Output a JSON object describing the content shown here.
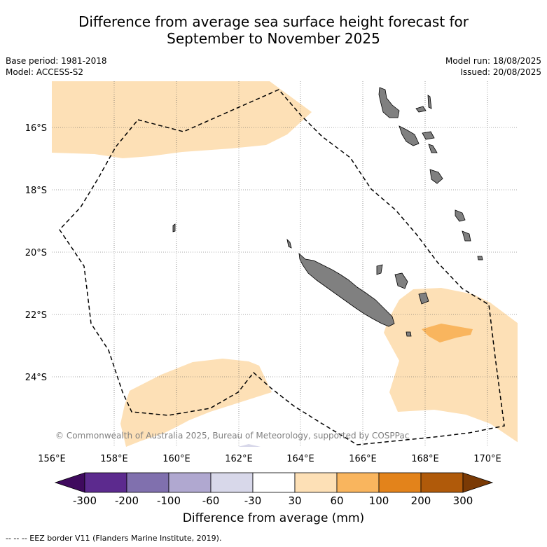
{
  "title": {
    "line1": "Difference from average sea surface height forecast for",
    "line2": "September to November 2025"
  },
  "meta": {
    "base_period": "Base period: 1981-2018",
    "model": "Model: ACCESS-S2",
    "model_run": "Model run: 18/08/2025",
    "issued": "Issued: 20/08/2025"
  },
  "map": {
    "lat_labels": [
      "16°S",
      "18°S",
      "20°S",
      "22°S",
      "24°S"
    ],
    "lon_labels": [
      "156°E",
      "158°E",
      "160°E",
      "162°E",
      "164°E",
      "166°E",
      "168°E",
      "170°E"
    ],
    "copyright": "© Commonwealth of Australia 2025, Bureau of Meteorology, supported by COSPPac",
    "colors": {
      "land": "#808080",
      "anomaly_30_60": "#fde0b6",
      "anomaly_60_100": "#f9b55e",
      "eez_border": "#000000"
    }
  },
  "colorbar": {
    "ticks": [
      "-300",
      "-200",
      "-100",
      "-60",
      "-30",
      "30",
      "60",
      "100",
      "200",
      "300"
    ],
    "colors": [
      "#3f0a5e",
      "#5c2a8e",
      "#8070ae",
      "#b0a8d0",
      "#d8d8ea",
      "#ffffff",
      "#fde0b6",
      "#f9b55e",
      "#e3831b",
      "#b05a0a",
      "#7a3a05"
    ],
    "label": "Difference from average (mm)"
  },
  "footnote": "--  --  -- EEZ border V11 (Flanders Marine Institute, 2019)."
}
